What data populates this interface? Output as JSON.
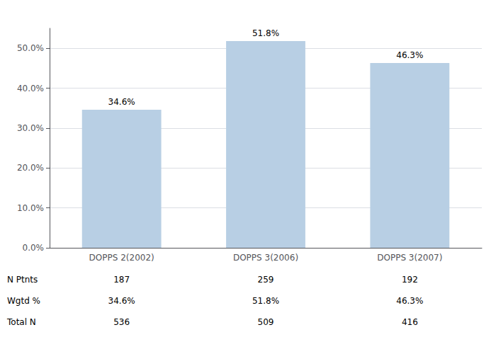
{
  "chart_data": {
    "type": "bar",
    "categories": [
      "DOPPS 2(2002)",
      "DOPPS 3(2006)",
      "DOPPS 3(2007)"
    ],
    "values": [
      34.6,
      51.8,
      46.3
    ],
    "value_labels": [
      "34.6%",
      "51.8%",
      "46.3%"
    ],
    "data_labels": true,
    "color": "#b8cfe4",
    "ylim": [
      0,
      55
    ],
    "yticks": [
      {
        "value": 0,
        "label": "0.0%"
      },
      {
        "value": 10,
        "label": "10.0%"
      },
      {
        "value": 20,
        "label": "20.0%"
      },
      {
        "value": 30,
        "label": "30.0%"
      },
      {
        "value": 40,
        "label": "40.0%"
      },
      {
        "value": 50,
        "label": "50.0%"
      }
    ],
    "grid": true,
    "table": {
      "row_labels": [
        "N Ptnts",
        "Wgtd %",
        "Total N"
      ],
      "rows": [
        [
          "187",
          "259",
          "192"
        ],
        [
          "34.6%",
          "51.8%",
          "46.3%"
        ],
        [
          "536",
          "509",
          "416"
        ]
      ]
    }
  }
}
